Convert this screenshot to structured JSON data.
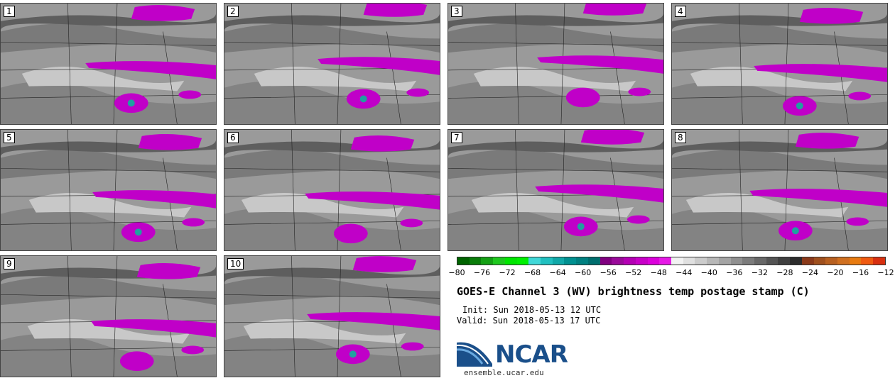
{
  "panels": [
    {
      "label": "1"
    },
    {
      "label": "2"
    },
    {
      "label": "3"
    },
    {
      "label": "4"
    },
    {
      "label": "5"
    },
    {
      "label": "6"
    },
    {
      "label": "7"
    },
    {
      "label": "8"
    },
    {
      "label": "9"
    },
    {
      "label": "10"
    }
  ],
  "colorbar": {
    "tick_labels": [
      "−80",
      "−76",
      "−72",
      "−68",
      "−64",
      "−60",
      "−56",
      "−52",
      "−48",
      "−44",
      "−40",
      "−36",
      "−32",
      "−28",
      "−24",
      "−20",
      "−16",
      "−12"
    ],
    "colors": [
      "#006400",
      "#0a7d0a",
      "#14a014",
      "#1ec81e",
      "#00e600",
      "#00f000",
      "#40d8d8",
      "#20c0c0",
      "#10a8a8",
      "#009090",
      "#008080",
      "#006e6e",
      "#800080",
      "#9a0a9a",
      "#b400b4",
      "#c800c8",
      "#dc00dc",
      "#e619e6",
      "#f2f2f2",
      "#e0e0e0",
      "#cccccc",
      "#b8b8b8",
      "#a4a4a4",
      "#909090",
      "#7c7c7c",
      "#686868",
      "#545454",
      "#404040",
      "#2c2c2c",
      "#8b3a1a",
      "#a0501e",
      "#b86020",
      "#d07020",
      "#e87b10",
      "#f05a10",
      "#d83010"
    ]
  },
  "title": "GOES-E Channel 3 (WV) brightness temp postage stamp (C)",
  "init": "Init: Sun 2018-05-13 12 UTC",
  "valid": "Valid: Sun 2018-05-13 17 UTC",
  "logo": {
    "text": "NCAR",
    "url": "ensemble.ucar.edu",
    "color": "#1a4f8a"
  }
}
